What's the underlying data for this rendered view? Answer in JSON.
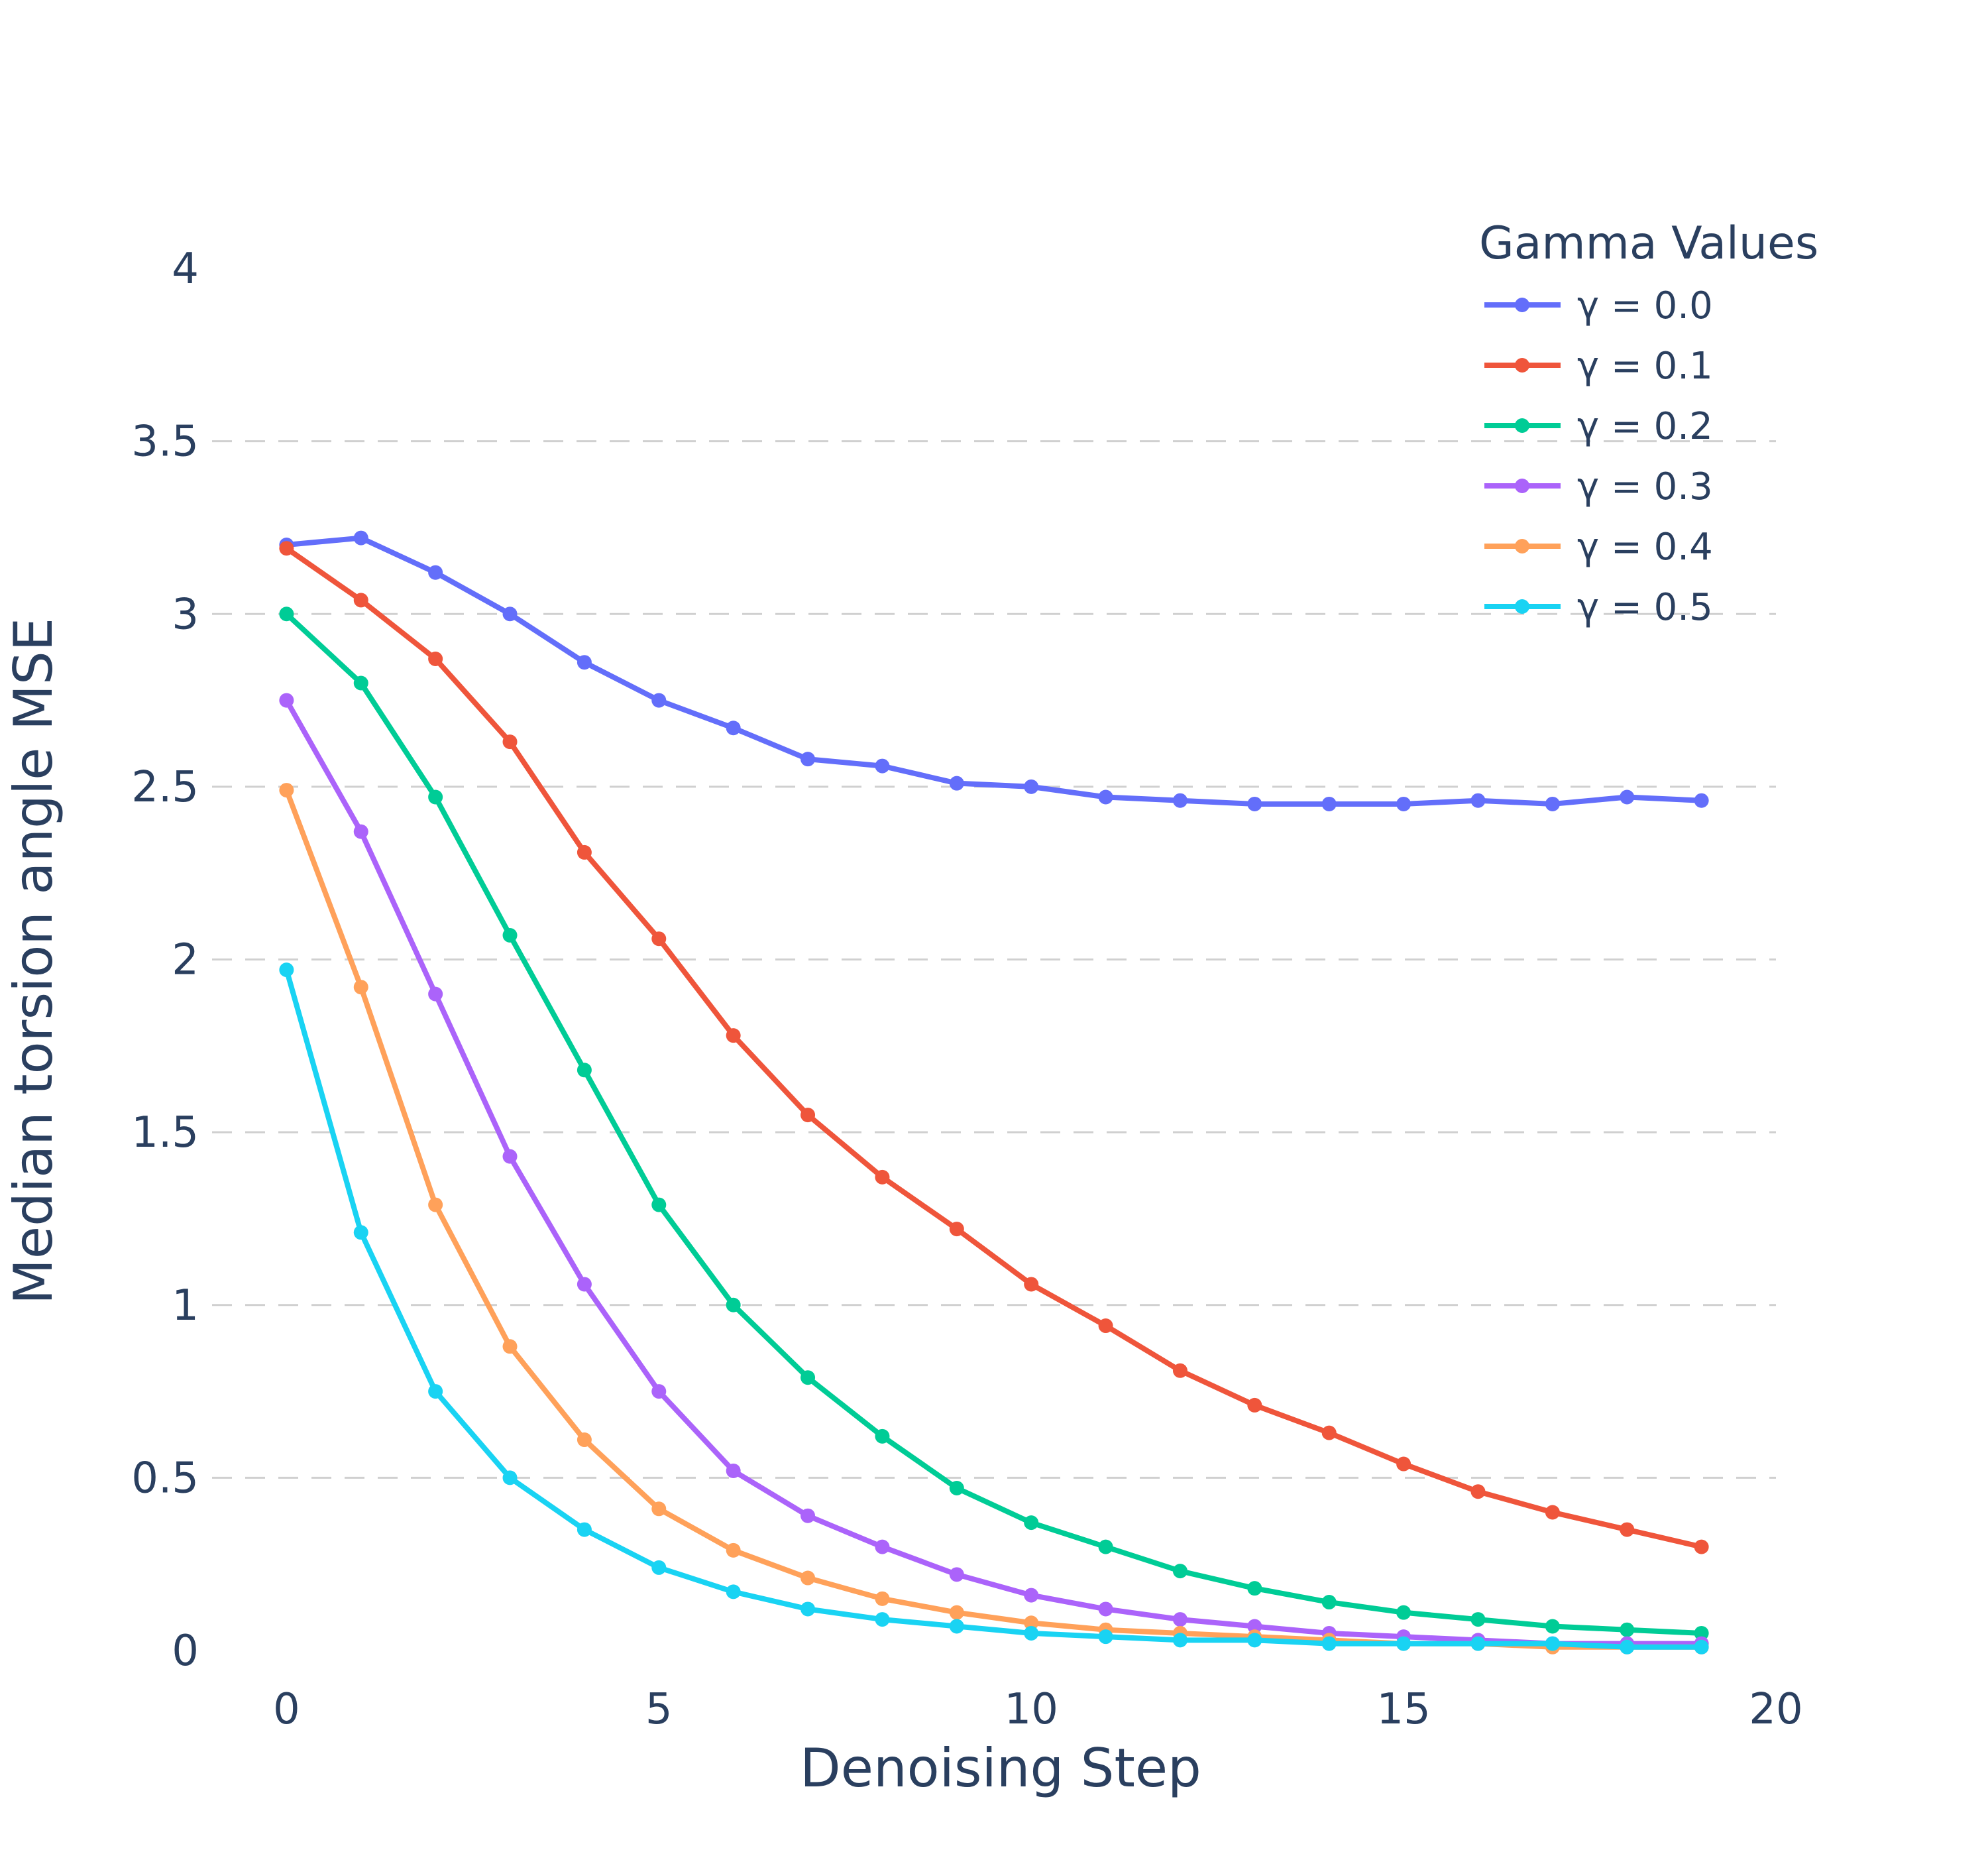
{
  "chart_data": {
    "type": "line",
    "title": "",
    "xlabel": "Denoising Step",
    "ylabel": "Median torsion angle MSE",
    "xlim": [
      -1,
      20
    ],
    "ylim": [
      0,
      4
    ],
    "xticks": [
      0,
      5,
      10,
      15,
      20
    ],
    "yticks": [
      0,
      0.5,
      1,
      1.5,
      2,
      2.5,
      3,
      3.5,
      4
    ],
    "ytick_labels": [
      "0",
      "0.5",
      "1",
      "1.5",
      "2",
      "2.5",
      "3",
      "3.5",
      "4"
    ],
    "grid": {
      "x": false,
      "y": true,
      "style": "dashed"
    },
    "legend": {
      "title": "Gamma Values",
      "placement": "top-right"
    },
    "x": [
      0,
      1,
      2,
      3,
      4,
      5,
      6,
      7,
      8,
      9,
      10,
      11,
      12,
      13,
      14,
      15,
      16,
      17,
      18,
      19
    ],
    "series": [
      {
        "name": "γ = 0.0",
        "color": "#636efa",
        "values": [
          3.2,
          3.22,
          3.12,
          3.0,
          2.86,
          2.75,
          2.67,
          2.58,
          2.56,
          2.51,
          2.5,
          2.47,
          2.46,
          2.45,
          2.45,
          2.45,
          2.46,
          2.45,
          2.47,
          2.46
        ]
      },
      {
        "name": "γ = 0.1",
        "color": "#ef553b",
        "values": [
          3.19,
          3.04,
          2.87,
          2.63,
          2.31,
          2.06,
          1.78,
          1.55,
          1.37,
          1.22,
          1.06,
          0.94,
          0.81,
          0.71,
          0.63,
          0.54,
          0.46,
          0.4,
          0.35,
          0.3
        ]
      },
      {
        "name": "γ = 0.2",
        "color": "#00cc96",
        "values": [
          3.0,
          2.8,
          2.47,
          2.07,
          1.68,
          1.29,
          1.0,
          0.79,
          0.62,
          0.47,
          0.37,
          0.3,
          0.23,
          0.18,
          0.14,
          0.11,
          0.09,
          0.07,
          0.06,
          0.05
        ]
      },
      {
        "name": "γ = 0.3",
        "color": "#ab63fa",
        "values": [
          2.75,
          2.37,
          1.9,
          1.43,
          1.06,
          0.75,
          0.52,
          0.39,
          0.3,
          0.22,
          0.16,
          0.12,
          0.09,
          0.07,
          0.05,
          0.04,
          0.03,
          0.02,
          0.02,
          0.02
        ]
      },
      {
        "name": "γ = 0.4",
        "color": "#ffa15a",
        "values": [
          2.49,
          1.92,
          1.29,
          0.88,
          0.61,
          0.41,
          0.29,
          0.21,
          0.15,
          0.11,
          0.08,
          0.06,
          0.05,
          0.04,
          0.03,
          0.02,
          0.02,
          0.01,
          0.01,
          0.01
        ]
      },
      {
        "name": "γ = 0.5",
        "color": "#19d3f3",
        "values": [
          1.97,
          1.21,
          0.75,
          0.5,
          0.35,
          0.24,
          0.17,
          0.12,
          0.09,
          0.07,
          0.05,
          0.04,
          0.03,
          0.03,
          0.02,
          0.02,
          0.02,
          0.02,
          0.01,
          0.01
        ]
      }
    ]
  }
}
